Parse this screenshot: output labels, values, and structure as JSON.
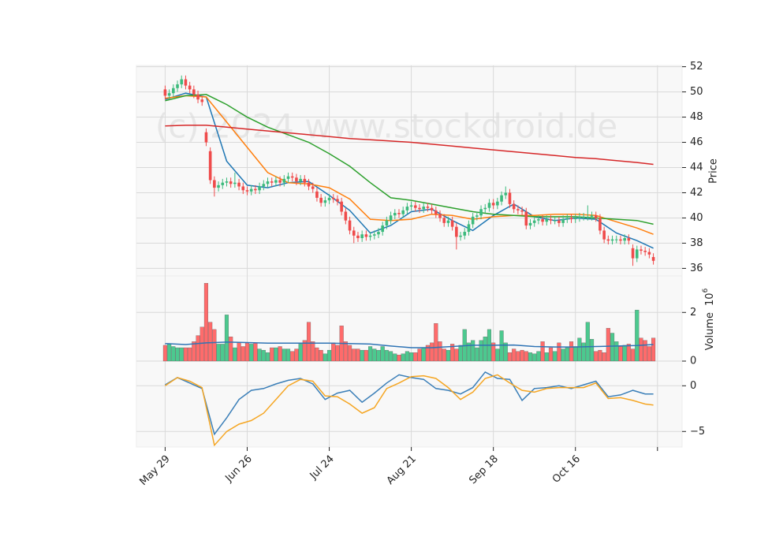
{
  "chart_data": [
    {
      "type": "candlestick",
      "y_label": "Price",
      "watermark": "(c) 2024 www.stockdroid.de",
      "ylim": [
        35.4,
        52.1
      ],
      "yticks": [
        36,
        38,
        40,
        42,
        44,
        46,
        48,
        50,
        52
      ],
      "grid": true,
      "up_color": "#3cba7c",
      "down_color": "#ef4b4b",
      "open": [
        50.2,
        49.7,
        49.9,
        50.3,
        50.6,
        51.0,
        50.5,
        50.2,
        49.8,
        49.4,
        46.8,
        45.3,
        43.0,
        42.4,
        42.6,
        42.8,
        42.9,
        42.7,
        42.8,
        42.5,
        42.2,
        42.1,
        42.3,
        42.2,
        42.5,
        42.7,
        42.9,
        42.8,
        43.0,
        42.8,
        43.1,
        43.3,
        43.2,
        42.9,
        43.1,
        42.8,
        42.5,
        42.1,
        41.6,
        41.2,
        41.4,
        41.6,
        41.5,
        41.3,
        40.5,
        39.8,
        39.0,
        38.6,
        38.4,
        38.7,
        38.5,
        38.6,
        38.7,
        38.9,
        39.4,
        39.8,
        40.2,
        40.4,
        40.3,
        40.6,
        40.9,
        41.0,
        40.8,
        40.7,
        40.9,
        40.8,
        40.6,
        40.3,
        40.0,
        39.6,
        39.8,
        39.3,
        38.5,
        38.6,
        38.9,
        39.5,
        40.1,
        40.2,
        40.7,
        40.8,
        41.2,
        41.0,
        41.3,
        41.8,
        42.0,
        41.1,
        40.7,
        40.6,
        40.5,
        39.4,
        39.6,
        39.8,
        39.9,
        39.7,
        39.9,
        39.8,
        39.8,
        39.6,
        39.9,
        40.0,
        39.9,
        40.0,
        40.1,
        40.1,
        40.1,
        40.2,
        40.0,
        39.0,
        38.3,
        38.2,
        38.3,
        38.3,
        38.2,
        38.4,
        37.6,
        36.8,
        37.5,
        37.4,
        37.3,
        36.9
      ],
      "high": [
        50.5,
        50.2,
        50.6,
        50.9,
        51.3,
        51.3,
        50.8,
        50.5,
        50.1,
        49.7,
        47.1,
        45.6,
        43.3,
        42.9,
        43.1,
        43.2,
        43.2,
        43.6,
        43.1,
        42.8,
        42.5,
        42.6,
        42.6,
        42.8,
        43.0,
        43.2,
        43.2,
        43.3,
        43.3,
        43.4,
        43.6,
        43.6,
        43.5,
        43.4,
        43.4,
        43.1,
        42.8,
        42.4,
        41.9,
        41.7,
        41.9,
        41.9,
        41.8,
        41.6,
        40.8,
        40.1,
        39.3,
        38.9,
        39.0,
        39.0,
        38.9,
        39.0,
        39.2,
        39.7,
        40.1,
        40.5,
        40.7,
        40.7,
        40.9,
        41.2,
        41.3,
        41.3,
        41.1,
        41.2,
        41.2,
        41.1,
        40.9,
        40.6,
        40.3,
        40.1,
        40.1,
        39.6,
        38.9,
        39.2,
        39.8,
        40.4,
        40.5,
        41.0,
        41.1,
        41.5,
        41.5,
        41.6,
        42.1,
        42.5,
        42.3,
        41.4,
        41.0,
        40.9,
        40.8,
        39.9,
        40.1,
        40.2,
        40.2,
        40.2,
        40.2,
        40.1,
        40.1,
        40.2,
        40.3,
        40.3,
        40.3,
        40.4,
        40.4,
        41.0,
        40.5,
        40.5,
        40.3,
        39.3,
        38.6,
        38.6,
        38.6,
        38.6,
        38.7,
        38.7,
        37.9,
        37.8,
        37.8,
        37.7,
        37.6,
        37.2
      ],
      "low": [
        49.4,
        49.4,
        49.6,
        50.0,
        50.3,
        50.2,
        49.9,
        49.5,
        49.1,
        48.9,
        45.7,
        42.7,
        41.7,
        42.1,
        42.3,
        42.5,
        42.4,
        42.4,
        42.2,
        41.9,
        41.8,
        41.8,
        41.9,
        41.9,
        42.2,
        42.4,
        42.5,
        42.5,
        42.5,
        42.5,
        42.8,
        42.9,
        42.6,
        42.6,
        42.5,
        42.2,
        42.0,
        41.3,
        40.9,
        40.9,
        41.1,
        41.2,
        41.0,
        40.2,
        39.5,
        38.7,
        38.0,
        38.1,
        38.1,
        38.2,
        38.2,
        38.3,
        38.4,
        38.6,
        39.1,
        39.5,
        39.9,
        40.0,
        40.0,
        40.3,
        40.6,
        40.5,
        40.4,
        40.4,
        40.5,
        40.3,
        40.0,
        39.7,
        39.3,
        39.3,
        39.0,
        37.5,
        38.2,
        38.3,
        38.6,
        39.2,
        39.8,
        39.9,
        40.4,
        40.5,
        40.7,
        40.7,
        41.0,
        41.5,
        40.8,
        40.4,
        40.3,
        40.2,
        39.1,
        39.1,
        39.3,
        39.5,
        39.4,
        39.4,
        39.5,
        39.5,
        39.3,
        39.3,
        39.6,
        39.6,
        39.6,
        39.7,
        39.8,
        39.8,
        39.8,
        39.7,
        38.7,
        38.0,
        37.9,
        37.9,
        38.0,
        37.9,
        37.9,
        37.9,
        36.2,
        36.5,
        37.1,
        37.0,
        36.8,
        36.3
      ],
      "close": [
        49.7,
        49.9,
        50.3,
        50.6,
        51.0,
        50.5,
        50.2,
        49.8,
        49.4,
        49.2,
        46.0,
        43.0,
        42.4,
        42.6,
        42.8,
        42.9,
        42.7,
        42.8,
        42.5,
        42.2,
        42.1,
        42.3,
        42.2,
        42.5,
        42.7,
        42.9,
        42.8,
        43.0,
        42.8,
        43.1,
        43.3,
        43.2,
        42.9,
        43.1,
        42.8,
        42.5,
        42.3,
        41.6,
        41.2,
        41.4,
        41.6,
        41.5,
        41.3,
        40.5,
        39.8,
        39.0,
        38.6,
        38.4,
        38.7,
        38.5,
        38.6,
        38.7,
        38.9,
        39.4,
        39.8,
        40.2,
        40.4,
        40.3,
        40.6,
        40.9,
        41.0,
        40.8,
        40.7,
        40.9,
        40.8,
        40.6,
        40.3,
        40.0,
        39.6,
        39.8,
        39.3,
        38.5,
        38.6,
        38.9,
        39.5,
        40.1,
        40.2,
        40.7,
        40.8,
        41.2,
        41.0,
        41.3,
        41.8,
        42.0,
        41.1,
        40.7,
        40.6,
        40.5,
        39.4,
        39.6,
        39.8,
        39.9,
        39.7,
        39.9,
        39.8,
        39.8,
        39.6,
        39.9,
        40.0,
        39.9,
        40.0,
        40.1,
        40.1,
        40.1,
        40.2,
        40.0,
        39.0,
        38.3,
        38.2,
        38.3,
        38.3,
        38.2,
        38.4,
        38.2,
        36.8,
        37.5,
        37.4,
        37.3,
        37.1,
        36.6
      ],
      "series": [
        {
          "color": "#1f77b4",
          "x": [
            0,
            5,
            10,
            15,
            20,
            25,
            30,
            35,
            40,
            45,
            50,
            55,
            60,
            65,
            70,
            75,
            80,
            85,
            90,
            95,
            100,
            105,
            110,
            115,
            119
          ],
          "values": [
            49.4,
            49.9,
            49.6,
            44.5,
            42.6,
            42.4,
            42.8,
            42.9,
            41.8,
            40.6,
            38.8,
            39.4,
            40.5,
            40.7,
            39.8,
            39.0,
            40.2,
            41.1,
            40.1,
            39.8,
            40.0,
            39.9,
            38.8,
            38.2,
            37.6
          ]
        },
        {
          "color": "#ff7f0e",
          "x": [
            0,
            5,
            10,
            15,
            20,
            25,
            30,
            35,
            40,
            45,
            50,
            55,
            60,
            65,
            70,
            75,
            80,
            85,
            90,
            95,
            100,
            105,
            110,
            115,
            119
          ],
          "values": [
            49.5,
            49.7,
            49.6,
            47.6,
            45.6,
            43.6,
            42.8,
            42.7,
            42.4,
            41.5,
            39.9,
            39.8,
            39.9,
            40.3,
            40.2,
            39.9,
            40.1,
            40.2,
            40.2,
            40.3,
            40.3,
            40.2,
            39.7,
            39.2,
            38.7
          ]
        },
        {
          "color": "#2ca02c",
          "x": [
            0,
            5,
            10,
            15,
            20,
            25,
            30,
            35,
            40,
            45,
            50,
            55,
            60,
            65,
            70,
            75,
            80,
            85,
            90,
            95,
            100,
            105,
            110,
            115,
            119
          ],
          "values": [
            49.3,
            49.7,
            49.8,
            49.0,
            48.0,
            47.2,
            46.6,
            46.0,
            45.1,
            44.1,
            42.8,
            41.6,
            41.4,
            41.1,
            40.8,
            40.5,
            40.3,
            40.2,
            40.1,
            40.1,
            40.1,
            40.0,
            39.9,
            39.8,
            39.5
          ]
        },
        {
          "color": "#d62728",
          "x": [
            0,
            5,
            10,
            15,
            20,
            25,
            30,
            35,
            40,
            45,
            50,
            55,
            60,
            65,
            70,
            75,
            80,
            85,
            90,
            95,
            100,
            105,
            110,
            115,
            119
          ],
          "values": [
            47.3,
            47.35,
            47.35,
            47.2,
            47.05,
            46.9,
            46.75,
            46.6,
            46.45,
            46.3,
            46.2,
            46.1,
            46.0,
            45.85,
            45.7,
            45.55,
            45.4,
            45.25,
            45.1,
            44.95,
            44.8,
            44.7,
            44.55,
            44.4,
            44.25
          ]
        }
      ]
    },
    {
      "type": "bar",
      "y_label": "Volume",
      "offset_base": "10",
      "offset_exponent": "6",
      "ylim": [
        0,
        3.5
      ],
      "yticks": [
        0,
        2
      ],
      "grid": true,
      "up_color": "#4cc98f",
      "down_color": "#ff6b6b",
      "values": [
        0.65,
        0.7,
        0.6,
        0.55,
        0.55,
        0.55,
        0.55,
        0.8,
        1.05,
        1.4,
        3.2,
        1.6,
        1.3,
        0.7,
        0.7,
        1.9,
        1.0,
        0.55,
        0.75,
        0.6,
        0.75,
        0.7,
        0.75,
        0.5,
        0.45,
        0.35,
        0.55,
        0.55,
        0.6,
        0.5,
        0.5,
        0.4,
        0.5,
        0.7,
        0.85,
        1.6,
        0.8,
        0.55,
        0.45,
        0.3,
        0.45,
        0.75,
        0.65,
        1.45,
        0.8,
        0.65,
        0.5,
        0.5,
        0.45,
        0.45,
        0.6,
        0.5,
        0.45,
        0.6,
        0.45,
        0.4,
        0.3,
        0.25,
        0.3,
        0.4,
        0.35,
        0.35,
        0.5,
        0.55,
        0.65,
        0.75,
        1.55,
        0.8,
        0.5,
        0.45,
        0.7,
        0.5,
        0.65,
        1.3,
        0.75,
        0.85,
        0.55,
        0.85,
        1.0,
        1.3,
        0.75,
        0.5,
        1.25,
        0.75,
        0.35,
        0.5,
        0.4,
        0.45,
        0.4,
        0.35,
        0.3,
        0.4,
        0.8,
        0.35,
        0.55,
        0.4,
        0.75,
        0.5,
        0.55,
        0.8,
        0.6,
        0.95,
        0.75,
        1.6,
        0.9,
        0.4,
        0.45,
        0.35,
        1.35,
        1.15,
        0.8,
        0.6,
        0.65,
        0.7,
        0.5,
        2.1,
        0.95,
        0.85,
        0.6,
        0.95
      ],
      "series": [
        {
          "color": "#2f74b5",
          "x": [
            0,
            5,
            10,
            15,
            20,
            25,
            30,
            35,
            40,
            45,
            50,
            55,
            60,
            65,
            70,
            75,
            80,
            85,
            90,
            95,
            100,
            105,
            110,
            115,
            119
          ],
          "values": [
            0.72,
            0.68,
            0.75,
            0.78,
            0.76,
            0.74,
            0.74,
            0.74,
            0.74,
            0.72,
            0.7,
            0.62,
            0.55,
            0.55,
            0.6,
            0.65,
            0.65,
            0.66,
            0.6,
            0.58,
            0.58,
            0.6,
            0.62,
            0.64,
            0.68
          ]
        }
      ]
    },
    {
      "type": "line",
      "ylim": [
        -6.7,
        2.7
      ],
      "yticks": [
        {
          "value": -5,
          "label": "−5"
        },
        0
      ],
      "grid": true,
      "xlim": [
        -7,
        126
      ],
      "xticks": [
        {
          "value": 0,
          "label": "May 29"
        },
        {
          "value": 20,
          "label": "Jun 26"
        },
        {
          "value": 40,
          "label": "Jul 24"
        },
        {
          "value": 60,
          "label": "Aug 21"
        },
        {
          "value": 80,
          "label": "Sep 18"
        },
        {
          "value": 100,
          "label": "Oct 16"
        },
        {
          "value": 120,
          "label": null
        }
      ],
      "series": [
        {
          "color": "#3b7fb8",
          "x": [
            0,
            3,
            6,
            9,
            12,
            15,
            18,
            21,
            24,
            27,
            30,
            33,
            36,
            39,
            42,
            45,
            48,
            51,
            54,
            57,
            60,
            63,
            66,
            69,
            72,
            75,
            78,
            81,
            84,
            87,
            90,
            93,
            96,
            99,
            102,
            105,
            108,
            111,
            114,
            117,
            119
          ],
          "values": [
            0.1,
            0.9,
            0.3,
            -0.3,
            -5.3,
            -3.5,
            -1.5,
            -0.5,
            -0.3,
            0.2,
            0.6,
            0.8,
            0.2,
            -1.5,
            -0.8,
            -0.5,
            -1.8,
            -0.8,
            0.3,
            1.2,
            0.9,
            0.7,
            -0.3,
            -0.5,
            -0.9,
            -0.2,
            1.5,
            0.8,
            0.7,
            -1.6,
            -0.3,
            -0.2,
            0.0,
            -0.3,
            0.1,
            0.5,
            -1.2,
            -1.0,
            -0.5,
            -0.9,
            -0.9
          ]
        },
        {
          "color": "#f5a623",
          "x": [
            0,
            3,
            6,
            9,
            12,
            15,
            18,
            21,
            24,
            27,
            30,
            33,
            36,
            39,
            42,
            45,
            48,
            51,
            54,
            57,
            60,
            63,
            66,
            69,
            72,
            75,
            78,
            81,
            84,
            87,
            90,
            93,
            96,
            99,
            102,
            105,
            108,
            111,
            114,
            117,
            119
          ],
          "values": [
            0.0,
            0.9,
            0.5,
            -0.2,
            -6.5,
            -5.0,
            -4.2,
            -3.8,
            -3.0,
            -1.5,
            0.0,
            0.7,
            0.5,
            -1.1,
            -1.2,
            -2.0,
            -3.0,
            -2.4,
            -0.3,
            0.3,
            1.0,
            1.1,
            0.8,
            -0.2,
            -1.5,
            -0.7,
            0.8,
            1.2,
            0.3,
            -0.5,
            -0.7,
            -0.3,
            -0.2,
            -0.2,
            -0.2,
            0.3,
            -1.4,
            -1.3,
            -1.6,
            -2.0,
            -2.1
          ]
        }
      ]
    }
  ]
}
